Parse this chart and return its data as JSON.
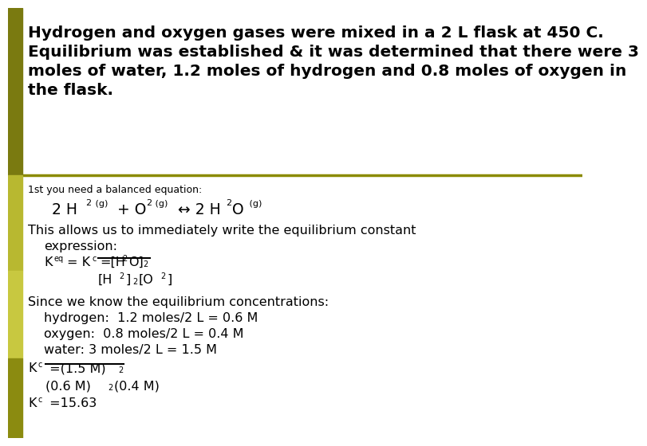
{
  "bg_color": "#ffffff",
  "left_bar_color_top": "#6B6B00",
  "left_bar_color_mid1": "#A8A820",
  "left_bar_color_mid2": "#C8C840",
  "left_bar_color_bot": "#8B8B10",
  "divider_color": "#8B8B00",
  "text_color": "#000000",
  "header_fontsize": 14.5,
  "body_fontsize": 11.5,
  "small_fontsize": 9.0,
  "sub_fontsize": 8.0,
  "header_lines": [
    "Hydrogen and oxygen gases were mixed in a 2 L flask at 450 C.",
    "Equilibrium was established & it was determined that there were 3",
    "moles of water, 1.2 moles of hydrogen and 0.8 moles of oxygen in",
    "the flask."
  ]
}
